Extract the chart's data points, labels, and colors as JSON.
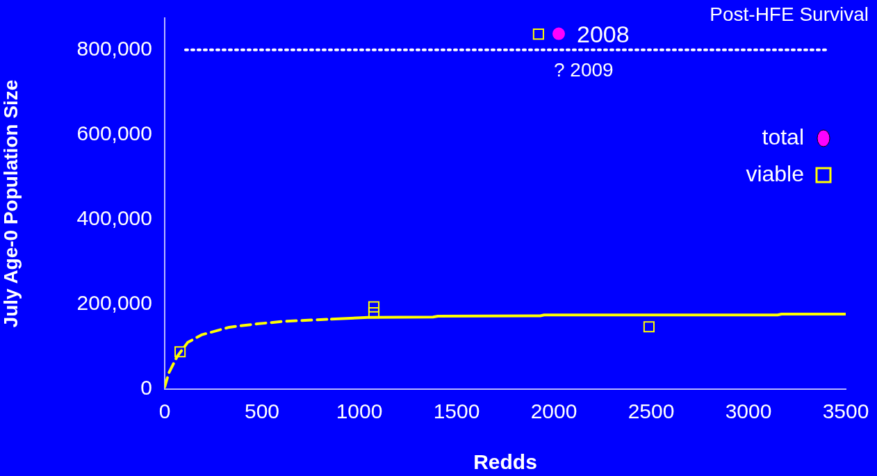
{
  "chart_data": {
    "type": "scatter",
    "title": "Post-HFE Survival",
    "xlabel": "Redds",
    "ylabel": "July Age-0 Population Size",
    "xlim": [
      0,
      3500
    ],
    "xticks": [
      0,
      500,
      1000,
      1500,
      2000,
      2500,
      3000,
      3500
    ],
    "ylim": [
      0,
      875000
    ],
    "yticks": [
      {
        "value": 0,
        "label": "0"
      },
      {
        "value": 200000,
        "label": "200,000"
      },
      {
        "value": 400000,
        "label": "400,000"
      },
      {
        "value": 600000,
        "label": "600,000"
      },
      {
        "value": 800000,
        "label": "800,000"
      }
    ],
    "grid": false,
    "legend": "right",
    "series": [
      {
        "type": "line",
        "color": "#ffff00",
        "line_style": "dashed",
        "marker": "none",
        "x": [
          0,
          21,
          64,
          118,
          189,
          332,
          475,
          618,
          857
        ],
        "values": [
          5000,
          38000,
          77000,
          110000,
          128000,
          146000,
          154000,
          160000,
          165000
        ]
      },
      {
        "type": "line",
        "color": "#ffff00",
        "line_style": "solid",
        "marker": "none",
        "x": [
          857,
          1046,
          1379,
          1404,
          1930,
          1950,
          3150,
          3170,
          3500
        ],
        "values": [
          165000,
          169000,
          170000,
          172000,
          173000,
          175000,
          175000,
          177000,
          177000
        ]
      },
      {
        "type": "line",
        "color": "#ffffff",
        "line_style": "dotted",
        "marker": "none",
        "x": [
          107,
          3414
        ],
        "values": [
          800000,
          800000
        ]
      },
      {
        "type": "scatter",
        "name": "total",
        "color": "#ff00ff",
        "marker": "circle",
        "x": [
          2025
        ],
        "values": [
          838000
        ]
      },
      {
        "type": "scatter",
        "name": "viable",
        "color": "#ffff00",
        "marker": "square",
        "x": [
          79,
          1075,
          1075,
          1921,
          2489
        ],
        "values": [
          88000,
          194000,
          180000,
          837000,
          147000
        ]
      }
    ],
    "annotations": [
      "2008",
      "? 2009"
    ]
  }
}
